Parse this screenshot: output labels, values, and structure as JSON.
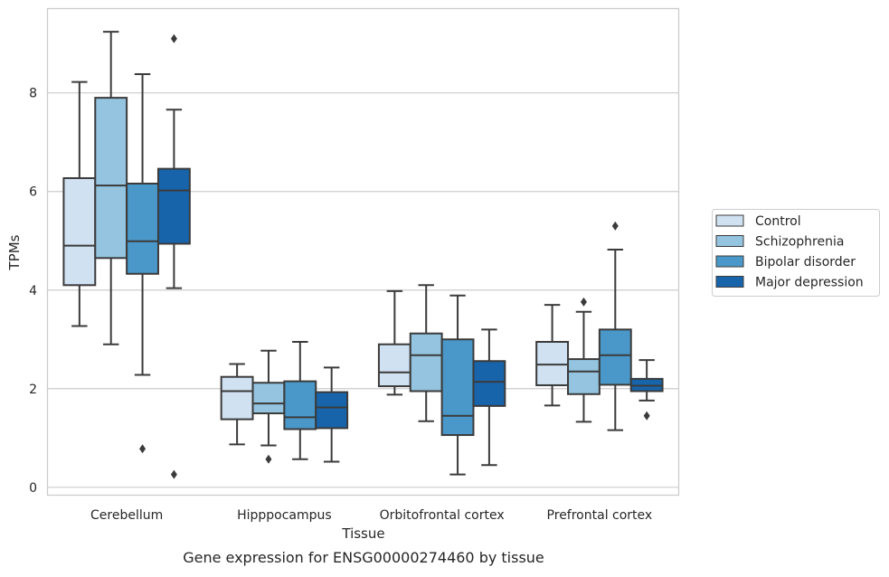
{
  "chart_data": {
    "type": "box",
    "title": "",
    "caption": "Gene expression for ENSG00000274460 by tissue",
    "xlabel": "Tissue",
    "ylabel": "TPMs",
    "ylim": [
      -0.15,
      9.7
    ],
    "yticks": [
      0,
      2,
      4,
      6,
      8
    ],
    "grid": "horizontal",
    "legend_position": "right, outside",
    "categories": [
      "Cerebellum",
      "Hipppocampus",
      "Orbitofrontal cortex",
      "Prefrontal cortex"
    ],
    "series": [
      {
        "name": "Control",
        "color": "#d0e1f2",
        "boxes": [
          {
            "whislo": 3.27,
            "q1": 4.1,
            "med": 4.9,
            "q3": 6.27,
            "whishi": 8.22,
            "fliers": []
          },
          {
            "whislo": 0.87,
            "q1": 1.38,
            "med": 1.95,
            "q3": 2.24,
            "whishi": 2.5,
            "fliers": []
          },
          {
            "whislo": 1.88,
            "q1": 2.05,
            "med": 2.33,
            "q3": 2.9,
            "whishi": 3.98,
            "fliers": []
          },
          {
            "whislo": 1.66,
            "q1": 2.07,
            "med": 2.49,
            "q3": 2.95,
            "whishi": 3.7,
            "fliers": []
          }
        ]
      },
      {
        "name": "Schizophrenia",
        "color": "#94c4df",
        "boxes": [
          {
            "whislo": 2.9,
            "q1": 4.65,
            "med": 6.12,
            "q3": 7.9,
            "whishi": 9.24,
            "fliers": []
          },
          {
            "whislo": 0.85,
            "q1": 1.5,
            "med": 1.7,
            "q3": 2.12,
            "whishi": 2.77,
            "fliers": [
              0.57
            ]
          },
          {
            "whislo": 1.34,
            "q1": 1.95,
            "med": 2.68,
            "q3": 3.12,
            "whishi": 4.1,
            "fliers": []
          },
          {
            "whislo": 1.33,
            "q1": 1.89,
            "med": 2.35,
            "q3": 2.6,
            "whishi": 3.56,
            "fliers": [
              3.76
            ]
          }
        ]
      },
      {
        "name": "Bipolar disorder",
        "color": "#4a98c9",
        "boxes": [
          {
            "whislo": 2.28,
            "q1": 4.33,
            "med": 4.99,
            "q3": 6.16,
            "whishi": 8.38,
            "fliers": [
              0.78
            ]
          },
          {
            "whislo": 0.57,
            "q1": 1.18,
            "med": 1.42,
            "q3": 2.15,
            "whishi": 2.95,
            "fliers": []
          },
          {
            "whislo": 0.26,
            "q1": 1.06,
            "med": 1.45,
            "q3": 3.0,
            "whishi": 3.89,
            "fliers": []
          },
          {
            "whislo": 1.16,
            "q1": 2.08,
            "med": 2.68,
            "q3": 3.2,
            "whishi": 4.82,
            "fliers": [
              5.3
            ]
          }
        ]
      },
      {
        "name": "Major depression",
        "color": "#1764ab",
        "boxes": [
          {
            "whislo": 4.04,
            "q1": 4.94,
            "med": 6.02,
            "q3": 6.46,
            "whishi": 7.66,
            "fliers": [
              9.1,
              0.26
            ]
          },
          {
            "whislo": 0.52,
            "q1": 1.2,
            "med": 1.62,
            "q3": 1.93,
            "whishi": 2.43,
            "fliers": []
          },
          {
            "whislo": 0.45,
            "q1": 1.65,
            "med": 2.14,
            "q3": 2.56,
            "whishi": 3.2,
            "fliers": []
          },
          {
            "whislo": 1.76,
            "q1": 1.95,
            "med": 2.06,
            "q3": 2.2,
            "whishi": 2.58,
            "fliers": [
              1.45
            ]
          }
        ]
      }
    ]
  }
}
